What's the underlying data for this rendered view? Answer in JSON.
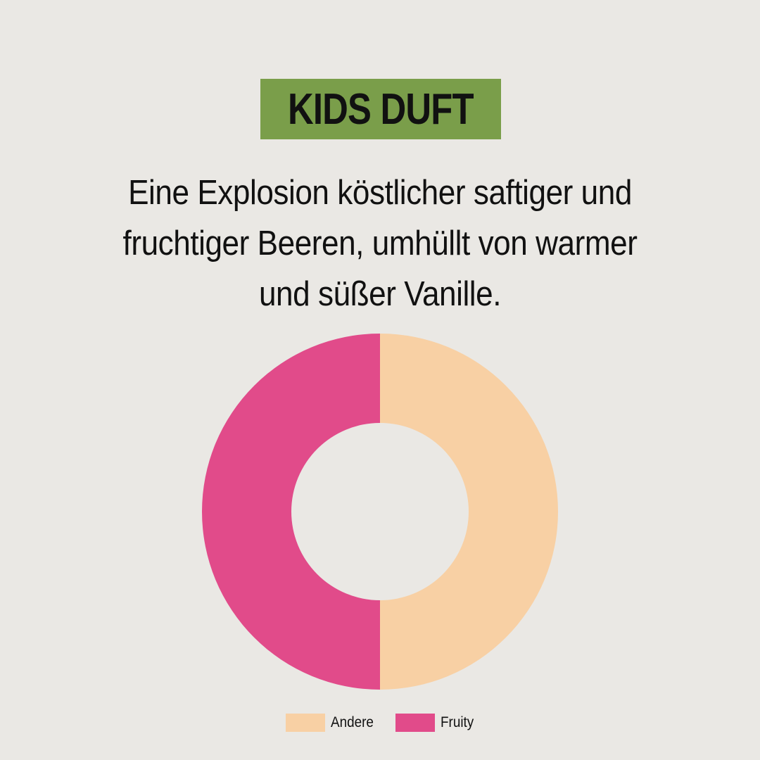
{
  "title": "KIDS DUFT",
  "subtitle_lines": [
    "Eine Explosion köstlicher saftiger und",
    "fruchtiger Beeren, umhüllt von warmer",
    "und süßer Vanille."
  ],
  "colors": {
    "background": "#eae8e4",
    "title_box": "#7a9e4a"
  },
  "chart_data": {
    "type": "pie",
    "variant": "donut",
    "categories": [
      "Andere",
      "Fruity"
    ],
    "values": [
      50,
      50
    ],
    "colors": [
      "#f8d0a4",
      "#e14b8a"
    ],
    "legend": "bottom"
  }
}
